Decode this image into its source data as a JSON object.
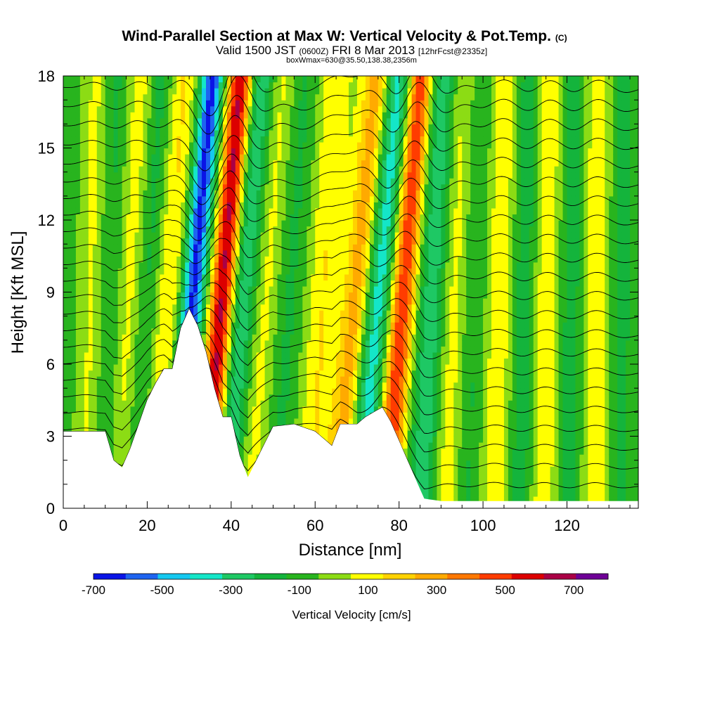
{
  "chart_data": {
    "type": "heatmap",
    "title": "Wind-Parallel Section at Max W: Vertical Velocity & Pot.Temp.",
    "title_mark": "(C)",
    "subtitle_parts": [
      "Valid 1500 JST",
      "(0600Z)",
      "FRI 8 Mar 2013",
      "[12hrFcst@2335z]"
    ],
    "subtitle2": "boxWmax=630@35.50,138.38,2356m",
    "xlabel": "Distance [nm]",
    "ylabel": "Height [Kft MSL]",
    "xlim": [
      0,
      137
    ],
    "ylim": [
      0,
      18
    ],
    "xticks": [
      "0",
      "20",
      "40",
      "60",
      "80",
      "100",
      "120"
    ],
    "xtick_values": [
      0,
      20,
      40,
      60,
      80,
      100,
      120
    ],
    "yticks": [
      "0",
      "3",
      "6",
      "9",
      "12",
      "15",
      "18"
    ],
    "ytick_values": [
      0,
      3,
      6,
      9,
      12,
      15,
      18
    ],
    "colorbar": {
      "label": "Vertical Velocity [cm/s]",
      "tick_labels": [
        "-700",
        "-500",
        "-300",
        "-100",
        "100",
        "300",
        "500",
        "700"
      ],
      "tick_values": [
        -700,
        -500,
        -300,
        -100,
        100,
        300,
        500,
        700
      ],
      "bins": [
        -700,
        -600,
        -500,
        -400,
        -300,
        -200,
        -100,
        0,
        100,
        200,
        300,
        400,
        500,
        600,
        700,
        800
      ],
      "colors": [
        "#0a14e6",
        "#1e64f0",
        "#14c8f0",
        "#14e6c8",
        "#1ec864",
        "#14b43c",
        "#28b41e",
        "#8cdc14",
        "#ffff00",
        "#ffd200",
        "#ffaa00",
        "#ff7800",
        "#ff3c00",
        "#dc0000",
        "#aa0046",
        "#6e0096"
      ]
    },
    "terrain_profile": {
      "x": [
        0,
        10,
        12,
        14,
        16,
        18,
        20,
        22,
        24,
        26,
        28,
        30,
        32,
        34,
        36,
        38,
        40,
        42,
        44,
        46,
        48,
        50,
        55,
        60,
        64,
        66,
        70,
        72,
        76,
        78,
        80,
        82,
        84,
        86,
        90,
        100,
        110,
        120,
        130,
        137
      ],
      "height_kft": [
        3.2,
        3.2,
        2.0,
        1.7,
        2.5,
        3.5,
        4.5,
        5.2,
        5.8,
        5.8,
        7.5,
        8.3,
        7.6,
        6.5,
        5.0,
        3.8,
        3.8,
        2.2,
        1.3,
        2.0,
        2.7,
        3.4,
        3.5,
        3.2,
        2.6,
        3.5,
        3.5,
        3.8,
        4.2,
        3.6,
        2.8,
        2.0,
        1.2,
        0.4,
        0.3,
        0.3,
        0.3,
        0.3,
        0.3,
        0.3
      ]
    },
    "vertical_velocity_bands": [
      {
        "x": 2,
        "lean": 0.1,
        "w": -60
      },
      {
        "x": 7,
        "lean": 0.1,
        "w": 130
      },
      {
        "x": 11,
        "lean": 0.15,
        "w": -160
      },
      {
        "x": 16,
        "lean": 0.25,
        "w": 160
      },
      {
        "x": 20,
        "lean": 0.3,
        "w": -180
      },
      {
        "x": 25,
        "lean": 0.35,
        "w": 200
      },
      {
        "x": 31,
        "lean": 0.42,
        "w": -650
      },
      {
        "x": 38,
        "lean": 0.4,
        "w": 720
      },
      {
        "x": 43,
        "lean": 0.4,
        "w": -320
      },
      {
        "x": 48,
        "lean": 0.38,
        "w": 130
      },
      {
        "x": 54,
        "lean": 0.32,
        "w": -140
      },
      {
        "x": 62,
        "lean": 0.3,
        "w": 180
      },
      {
        "x": 70,
        "lean": 0.45,
        "w": 350
      },
      {
        "x": 75,
        "lean": 0.45,
        "w": -400
      },
      {
        "x": 81,
        "lean": 0.38,
        "w": 580
      },
      {
        "x": 88,
        "lean": 0.25,
        "w": -300
      },
      {
        "x": 93,
        "lean": 0.2,
        "w": 150
      },
      {
        "x": 98,
        "lean": 0.15,
        "w": -140
      },
      {
        "x": 104,
        "lean": 0.12,
        "w": 170
      },
      {
        "x": 110,
        "lean": 0.1,
        "w": -200
      },
      {
        "x": 115,
        "lean": 0.08,
        "w": 190
      },
      {
        "x": 121,
        "lean": 0.05,
        "w": -180
      },
      {
        "x": 127,
        "lean": 0.04,
        "w": 160
      },
      {
        "x": 133,
        "lean": 0.03,
        "w": -150
      }
    ],
    "theta_contour_levels_kft": [
      0.8,
      1.6,
      2.4,
      3.2,
      4.0,
      4.8,
      5.6,
      6.4,
      7.2,
      8.0,
      8.8,
      9.6,
      10.4,
      11.2,
      12.0,
      12.8,
      13.6,
      14.4,
      15.2,
      16.0,
      16.8,
      17.6
    ]
  }
}
